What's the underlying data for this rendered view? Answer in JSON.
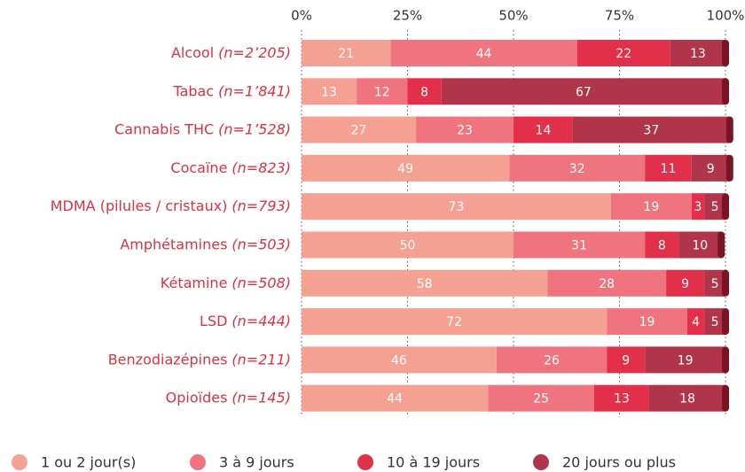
{
  "chart_data": {
    "type": "bar",
    "orientation": "horizontal",
    "stacked": true,
    "categories": [
      "Alcool",
      "Tabac",
      "Cannabis THC",
      "Cocaïne",
      "MDMA (pilules / cristaux)",
      "Amphétamines",
      "Kétamine",
      "LSD",
      "Benzodiazépines",
      "Opioïdes"
    ],
    "category_notes": [
      "(n=2’205)",
      "(n=1’841)",
      "(n=1’528)",
      "(n=823)",
      "(n=793)",
      "(n=503)",
      "(n=508)",
      "(n=444)",
      "(n=211)",
      "(n=145)"
    ],
    "series": [
      {
        "name": "1 ou 2 jour(s)",
        "color": "#f4a193",
        "values": [
          21,
          13,
          27,
          49,
          73,
          50,
          58,
          72,
          46,
          44
        ]
      },
      {
        "name": "3 à 9 jours",
        "color": "#f07480",
        "values": [
          44,
          12,
          23,
          32,
          19,
          31,
          28,
          19,
          26,
          25
        ]
      },
      {
        "name": "10 à 19 jours",
        "color": "#e2304a",
        "values": [
          22,
          8,
          14,
          11,
          3,
          8,
          9,
          4,
          9,
          13
        ]
      },
      {
        "name": "20 jours ou plus",
        "color": "#b0354b",
        "values": [
          13,
          67,
          37,
          9,
          5,
          10,
          5,
          5,
          19,
          18
        ]
      }
    ],
    "xlim": [
      0,
      100
    ],
    "xticks": [
      {
        "value": 0,
        "label": "0%"
      },
      {
        "value": 25,
        "label": "25%"
      },
      {
        "value": 50,
        "label": "50%"
      },
      {
        "value": 75,
        "label": "75%"
      },
      {
        "value": 100,
        "label": "100%"
      }
    ],
    "grid": true,
    "legend": "bottom"
  }
}
